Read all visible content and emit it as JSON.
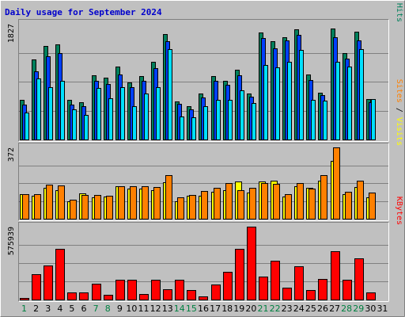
{
  "colors": {
    "background": "#c0c0c0",
    "plot": "#c0c0c0",
    "title": "#0000cc",
    "hits": "#00805c",
    "files": "#0040ff",
    "pages": "#00e0ff",
    "visits": "#ffff00",
    "sites": "#ff8000",
    "kbytes": "#ff0000",
    "weekday_label": "#000000",
    "weekend_label": "#008040"
  },
  "chart_data": {
    "type": "bar",
    "title": "Daily usage for September 2024",
    "days": [
      "1",
      "2",
      "3",
      "4",
      "5",
      "6",
      "7",
      "8",
      "9",
      "10",
      "11",
      "12",
      "13",
      "14",
      "15",
      "16",
      "17",
      "18",
      "19",
      "20",
      "21",
      "22",
      "23",
      "24",
      "25",
      "26",
      "27",
      "28",
      "29",
      "30",
      "31"
    ],
    "weekend_days": [
      "1",
      "7",
      "8",
      "14",
      "15",
      "21",
      "22",
      "28",
      "29"
    ],
    "panels": [
      {
        "id": "hits_files_pages",
        "ymax_label": "1827",
        "ymax": 1827,
        "side_labels": [
          {
            "text": "Hits",
            "color": "#00805c"
          },
          {
            "text": "Files",
            "color": "#0040ff"
          },
          {
            "text": "Pages",
            "color": "#00e0ff"
          }
        ],
        "series": [
          {
            "name": "Hits",
            "values": [
              630,
              1260,
              1480,
              1500,
              620,
              590,
              1010,
              970,
              1150,
              900,
              1000,
              1230,
              1660,
              600,
              520,
              720,
              1000,
              930,
              1100,
              730,
              1690,
              1550,
              1610,
              1740,
              1020,
              740,
              1750,
              1360,
              1700,
              640,
              null
            ]
          },
          {
            "name": "Files",
            "values": [
              550,
              1080,
              1310,
              1360,
              550,
              530,
              930,
              870,
              1030,
              820,
              930,
              1120,
              1550,
              560,
              480,
              660,
              920,
              860,
              1010,
              670,
              1600,
              1440,
              1560,
              1650,
              940,
              700,
              1620,
              1280,
              1560,
              590,
              null
            ]
          },
          {
            "name": "Pages",
            "values": [
              430,
              960,
              830,
              920,
              480,
              390,
              810,
              650,
              820,
              530,
              720,
              820,
              1430,
              360,
              350,
              520,
              620,
              630,
              770,
              570,
              1180,
              1140,
              1230,
              1420,
              620,
              610,
              1230,
              1150,
              1430,
              640,
              null
            ]
          }
        ]
      },
      {
        "id": "visits_sites",
        "ymax_label": "372",
        "ymax": 372,
        "side_labels": [
          {
            "text": "Visits",
            "color": "#ffff00"
          },
          {
            "text": "Sites",
            "color": "#ff8000"
          }
        ],
        "series": [
          {
            "name": "Visits",
            "values": [
              128,
              118,
              160,
              150,
              90,
              133,
              110,
              115,
              168,
              155,
              158,
              150,
              190,
              90,
              120,
              118,
              140,
              150,
              193,
              135,
              195,
              200,
              115,
              170,
              160,
              200,
              300,
              130,
              165,
              110,
              null
            ]
          },
          {
            "name": "Sites",
            "values": [
              130,
              130,
              176,
              173,
              99,
              126,
              126,
              119,
              170,
              170,
              168,
              164,
              226,
              111,
              126,
              146,
              160,
              184,
              149,
              160,
              184,
              180,
              128,
              186,
              156,
              226,
              372,
              140,
              200,
              136,
              null
            ]
          }
        ]
      },
      {
        "id": "kbytes",
        "ymax_label": "575939",
        "ymax": 575939,
        "side_labels": [
          {
            "text": "KBytes",
            "color": "#ff0000"
          }
        ],
        "series": [
          {
            "name": "KBytes",
            "values": [
              14000,
              200000,
              271000,
              402000,
              55000,
              55000,
              127000,
              37000,
              158000,
              154000,
              41000,
              155000,
              82000,
              154000,
              78000,
              27000,
              120000,
              219000,
              402000,
              575939,
              180000,
              308000,
              95000,
              260000,
              75000,
              165000,
              380000,
              155000,
              324000,
              55000,
              null
            ]
          }
        ]
      }
    ]
  }
}
